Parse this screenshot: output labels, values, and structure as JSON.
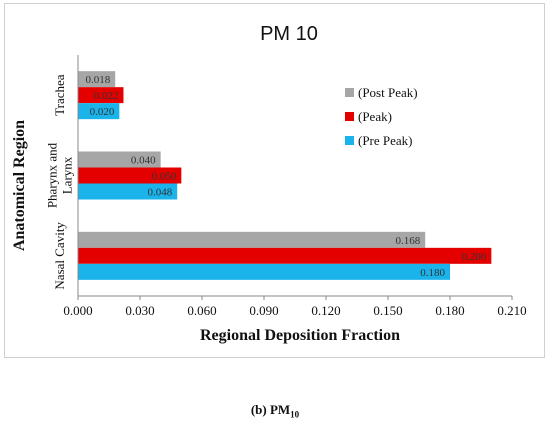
{
  "chart_data": {
    "type": "bar",
    "orientation": "horizontal",
    "title": "PM 10",
    "xlabel": "Regional Deposition Fraction",
    "ylabel": "Anatomical Region",
    "xlim": [
      0,
      0.21
    ],
    "xticks": [
      "0.000",
      "0.030",
      "0.060",
      "0.090",
      "0.120",
      "0.150",
      "0.180",
      "0.210"
    ],
    "grid": false,
    "legend_position": "upper-right",
    "categories": [
      {
        "lines": [
          "Trachea"
        ]
      },
      {
        "lines": [
          "Pharynx and",
          "Larynx"
        ]
      },
      {
        "lines": [
          "Nasal Cavity"
        ]
      }
    ],
    "series": [
      {
        "name": "(Post Peak)",
        "color": "#a6a6a6",
        "values": [
          0.018,
          0.04,
          0.168
        ],
        "labels": [
          "0.018",
          "0.040",
          "0.168"
        ]
      },
      {
        "name": "(Peak)",
        "color": "#e50000",
        "values": [
          0.022,
          0.05,
          0.2
        ],
        "labels": [
          "0.022",
          "0.050",
          "0.200"
        ]
      },
      {
        "name": "(Pre Peak)",
        "color": "#1ab3ea",
        "values": [
          0.02,
          0.048,
          0.18
        ],
        "labels": [
          "0.020",
          "0.048",
          "0.180"
        ]
      }
    ]
  },
  "caption": {
    "prefix": "(b)",
    "main": "PM",
    "sub": "10"
  }
}
